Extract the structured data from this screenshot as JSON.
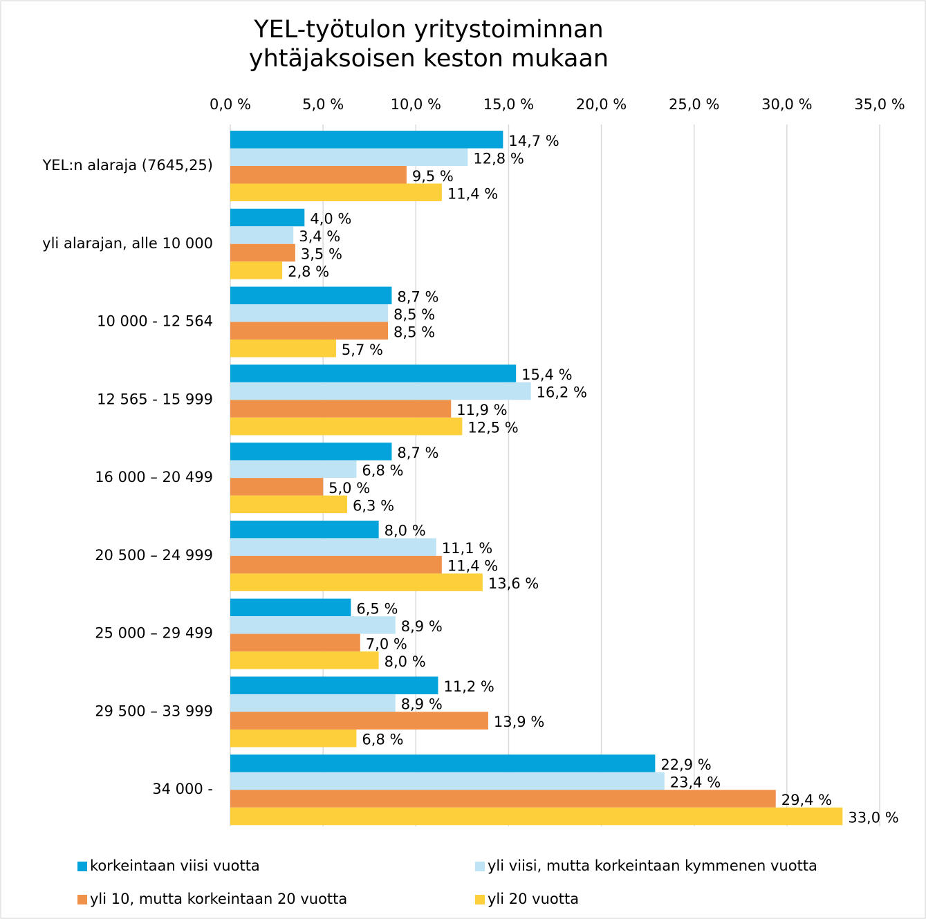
{
  "chart_data": {
    "type": "bar",
    "orientation": "horizontal",
    "title": "YEL-työtulon yritystoiminnan yhtäjaksoisen keston mukaan",
    "categories": [
      "YEL:n alaraja (7645,25)",
      "yli alarajan, alle 10 000",
      "10 000 - 12 564",
      "12 565 - 15 999",
      "16 000 – 20 499",
      "20 500 – 24 999",
      "25 000 – 29 499",
      "29 500 – 33 999",
      "34 000 -"
    ],
    "series": [
      {
        "name": "korkeintaan viisi vuotta",
        "color": "#05a3db",
        "values": [
          14.7,
          4.0,
          8.7,
          15.4,
          8.7,
          8.0,
          6.5,
          11.2,
          22.9
        ],
        "value_labels": [
          "14,7 %",
          "4,0 %",
          "8,7 %",
          "15,4 %",
          "8,7 %",
          "8,0 %",
          "6,5 %",
          "11,2 %",
          "22,9 %"
        ]
      },
      {
        "name": "yli viisi, mutta korkeintaan kymmenen vuotta",
        "color": "#bee3f5",
        "values": [
          12.8,
          3.4,
          8.5,
          16.2,
          6.8,
          11.1,
          8.9,
          8.9,
          23.4
        ],
        "value_labels": [
          "12,8 %",
          "3,4 %",
          "8,5 %",
          "16,2 %",
          "6,8 %",
          "11,1 %",
          "8,9 %",
          "8,9 %",
          "23,4 %"
        ]
      },
      {
        "name": "yli 10, mutta korkeintaan 20 vuotta",
        "color": "#f0914a",
        "values": [
          9.5,
          3.5,
          8.5,
          11.9,
          5.0,
          11.4,
          7.0,
          13.9,
          29.4
        ],
        "value_labels": [
          "9,5 %",
          "3,5 %",
          "8,5 %",
          "11,9 %",
          "5,0 %",
          "11,4 %",
          "7,0 %",
          "13,9 %",
          "29,4 %"
        ]
      },
      {
        "name": "yli 20 vuotta",
        "color": "#fdcf3b",
        "values": [
          11.4,
          2.8,
          5.7,
          12.5,
          6.3,
          13.6,
          8.0,
          6.8,
          33.0
        ],
        "value_labels": [
          "11,4 %",
          "2,8 %",
          "5,7 %",
          "12,5 %",
          "6,3 %",
          "13,6 %",
          "8,0 %",
          "6,8 %",
          "33,0 %"
        ]
      }
    ],
    "xlim": [
      0,
      35
    ],
    "xticks": [
      {
        "value": 0,
        "label": "0,0 %"
      },
      {
        "value": 5,
        "label": "5,0 %"
      },
      {
        "value": 10,
        "label": "10,0 %"
      },
      {
        "value": 15,
        "label": "15,0 %"
      },
      {
        "value": 20,
        "label": "20,0 %"
      },
      {
        "value": 25,
        "label": "25,0 %"
      },
      {
        "value": 30,
        "label": "30,0 %"
      },
      {
        "value": 35,
        "label": "35,0 %"
      }
    ],
    "grid": true,
    "legend": "bottom"
  }
}
